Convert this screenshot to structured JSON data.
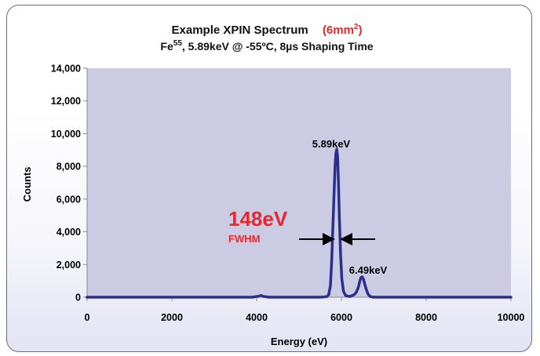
{
  "chart_data": {
    "type": "line",
    "title": {
      "line1_main": "Example XPIN Spectrum",
      "line1_area_prefix": "(6mm",
      "line1_area_exp": "2",
      "line1_area_suffix": ")",
      "line2_elem": "Fe",
      "line2_iso": "55",
      "line2_rest": ", 5.89keV @ -55ºC, 8µs Shaping Time"
    },
    "xlabel": "Energy (eV)",
    "ylabel": "Counts",
    "xlim": [
      0,
      10000
    ],
    "ylim": [
      0,
      14000
    ],
    "x_ticks": [
      "0",
      "2000",
      "4000",
      "6000",
      "8000",
      "10000"
    ],
    "y_ticks": [
      "0",
      "2,000",
      "4,000",
      "6,000",
      "8,000",
      "10,000",
      "12,000",
      "14,000"
    ],
    "grid": false,
    "series": [
      {
        "color": "#2b2f8c",
        "x": [
          0,
          500,
          1000,
          1500,
          2000,
          2500,
          3000,
          3500,
          3900,
          4050,
          4100,
          4150,
          4300,
          5000,
          5500,
          5650,
          5700,
          5740,
          5770,
          5800,
          5830,
          5850,
          5870,
          5890,
          5910,
          5930,
          5950,
          5980,
          6010,
          6050,
          6100,
          6200,
          6300,
          6350,
          6400,
          6430,
          6460,
          6490,
          6520,
          6550,
          6590,
          6630,
          6680,
          6750,
          7000,
          8000,
          9000,
          10000
        ],
        "y": [
          0,
          0,
          0,
          0,
          0,
          0,
          0,
          0,
          0,
          60,
          110,
          50,
          0,
          0,
          0,
          30,
          150,
          700,
          2200,
          4400,
          6600,
          8000,
          8800,
          9050,
          8600,
          7000,
          5000,
          2600,
          1100,
          350,
          100,
          40,
          150,
          300,
          600,
          950,
          1200,
          1250,
          1100,
          800,
          450,
          180,
          40,
          0,
          0,
          0,
          0,
          0
        ]
      }
    ],
    "annotations": {
      "peak1_label": "5.89keV",
      "peak2_label": "6.49keV",
      "fwhm_value": "148eV",
      "fwhm_label": "FWHM"
    },
    "colors": {
      "plot_area": "#cbcbe3",
      "series": "#2b2f8c",
      "highlight": "#e8262b",
      "axis": "#8a8a8a"
    }
  }
}
